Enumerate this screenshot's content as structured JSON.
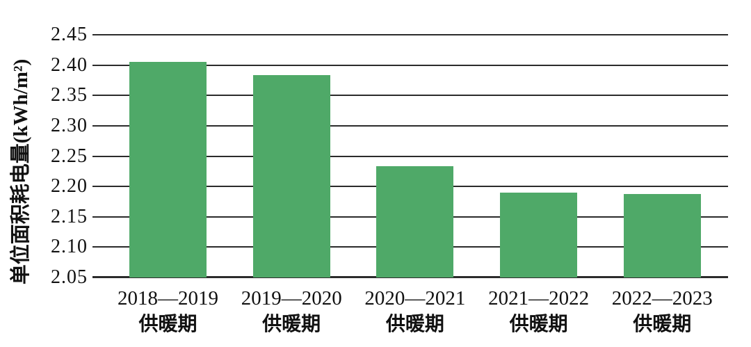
{
  "page": {
    "background": "#ffffff"
  },
  "chart_data": {
    "type": "bar",
    "ylabel": "单位面积耗电量(kWh/m²)",
    "categories": [
      {
        "years": "2018—2019",
        "period": "供暖期"
      },
      {
        "years": "2019—2020",
        "period": "供暖期"
      },
      {
        "years": "2020—2021",
        "period": "供暖期"
      },
      {
        "years": "2021—2022",
        "period": "供暖期"
      },
      {
        "years": "2022—2023",
        "period": "供暖期"
      }
    ],
    "values": [
      2.405,
      2.383,
      2.233,
      2.19,
      2.187
    ],
    "ylim": [
      2.05,
      2.45
    ],
    "ytick_labels": [
      "2.05",
      "2.10",
      "2.15",
      "2.20",
      "2.25",
      "2.30",
      "2.35",
      "2.40",
      "2.45"
    ],
    "ytick_step": 0.05,
    "grid": true,
    "legend": "none",
    "colors": {
      "bar": "#4FA968",
      "gridline": "#2b2b2b",
      "text": "#111111",
      "background": "#ffffff"
    }
  }
}
